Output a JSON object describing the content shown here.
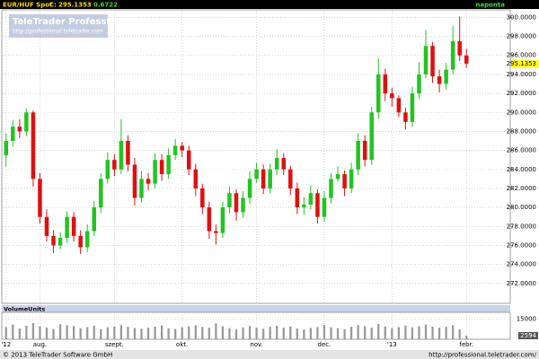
{
  "chart_data": {
    "type": "candlestick",
    "instrument": "EUR/HUF Spot",
    "close_label": "C:",
    "change": 0.6722,
    "period": "naponta",
    "watermark_title": "TeleTrader Professional",
    "watermark_url": "http://professional.teletrader.com",
    "volume_title": "VolumeUnits",
    "footer_left": "© 2013 TeleTrader Software GmbH",
    "footer_right": "http://professional.teletrader.com/",
    "up_color": "#22c422",
    "down_color": "#e01010",
    "grid": true,
    "categories": [
      "'12",
      null,
      null,
      null,
      null,
      "aug.",
      null,
      null,
      null,
      null,
      null,
      null,
      null,
      null,
      null,
      null,
      "szept.",
      null,
      null,
      null,
      null,
      null,
      null,
      null,
      null,
      null,
      "okt.",
      null,
      null,
      null,
      null,
      null,
      null,
      null,
      null,
      null,
      null,
      "nov.",
      null,
      null,
      null,
      null,
      null,
      null,
      null,
      null,
      null,
      "dec.",
      null,
      null,
      null,
      null,
      null,
      null,
      null,
      null,
      null,
      "'13",
      null,
      null,
      null,
      null,
      null,
      null,
      null,
      null,
      null,
      null,
      "febr."
    ],
    "open": [
      285.5,
      287,
      288.5,
      288,
      290,
      283,
      279,
      277,
      276,
      276.8,
      279,
      277,
      275.8,
      277.5,
      280,
      283,
      285,
      284,
      287,
      284.5,
      281,
      283,
      282.5,
      285,
      283.5,
      285.5,
      286.5,
      286,
      284,
      282,
      280,
      277.5,
      277.3,
      280,
      281.5,
      279.5,
      281,
      283,
      284,
      282,
      284,
      285.2,
      284,
      282,
      280,
      280.3,
      281.5,
      279,
      281,
      283,
      283.5,
      282,
      284,
      287,
      285,
      290,
      294,
      292,
      291.5,
      290,
      289,
      292,
      294,
      297,
      293.8,
      293,
      294.5,
      297.5,
      296
    ],
    "high": [
      287.8,
      289.2,
      289.3,
      290.4,
      290.2,
      283.6,
      279.8,
      277.6,
      277.4,
      279.6,
      279.5,
      277.6,
      278.2,
      280.7,
      283.6,
      285.8,
      285.6,
      289.3,
      287.6,
      285.2,
      283.8,
      283.6,
      285.7,
      285.6,
      286.2,
      287.2,
      286.9,
      286.5,
      284.6,
      282.5,
      280.6,
      278.2,
      280.6,
      282.2,
      281.9,
      281.7,
      283.8,
      284.7,
      284.5,
      284.6,
      286.1,
      285.7,
      284.4,
      282.6,
      281.1,
      282.3,
      281.9,
      281.7,
      283.6,
      284.3,
      283.9,
      284.7,
      287.8,
      287.6,
      290.6,
      295.7,
      294.6,
      292.6,
      291.8,
      290.5,
      292.7,
      295.3,
      298.7,
      297.4,
      294.5,
      295.2,
      299.1,
      300.1,
      296.7
    ],
    "low": [
      284.3,
      286.4,
      287.3,
      287.5,
      282.2,
      278.3,
      276.4,
      275.2,
      275.6,
      276.3,
      276.4,
      275.1,
      275.3,
      277,
      279.4,
      282.5,
      283.3,
      283.5,
      283.8,
      280.2,
      280.5,
      281.8,
      282,
      282.8,
      283,
      285,
      285.3,
      283.4,
      281.2,
      279.3,
      276.7,
      276.1,
      276.8,
      279.4,
      278.6,
      278.9,
      280.4,
      282.6,
      281.4,
      281.5,
      283.4,
      283.4,
      281.3,
      279.3,
      279.2,
      279.8,
      278.3,
      278.5,
      280.4,
      282.7,
      281.2,
      281.5,
      283.4,
      284.3,
      284.5,
      289.3,
      291.2,
      290.6,
      289.5,
      288.2,
      288.5,
      291.4,
      293.6,
      293.1,
      292.1,
      292.4,
      294,
      295.4,
      294.7
    ],
    "close": [
      287,
      288.5,
      288,
      290,
      283,
      279,
      277,
      276,
      276.8,
      279,
      277,
      275.8,
      277.5,
      280,
      283,
      285,
      284,
      287,
      284.5,
      281,
      283,
      282.5,
      285,
      283.5,
      285.5,
      286.5,
      286,
      284,
      282,
      280,
      277.5,
      277.3,
      280,
      281.5,
      279.5,
      281,
      283,
      284,
      282,
      284,
      285.2,
      284,
      282,
      280,
      280.3,
      281.5,
      279,
      281,
      283,
      283.5,
      282,
      284,
      287,
      285,
      290,
      294,
      292,
      291.5,
      290,
      289,
      292,
      294,
      297,
      293.8,
      293,
      294.5,
      297.5,
      296,
      295.1353
    ],
    "volume": [
      9000,
      11000,
      8000,
      10000,
      12000,
      9500,
      8700,
      7600,
      11200,
      10400,
      9800,
      8200,
      9000,
      10100,
      7600,
      8800,
      9300,
      10500,
      9200,
      8400,
      7900,
      8600,
      9400,
      10200,
      8100,
      7700,
      8900,
      9600,
      10300,
      9100,
      8500,
      11800,
      9700,
      8300,
      7400,
      8800,
      9900,
      8600,
      7800,
      9200,
      10100,
      8700,
      9500,
      8000,
      7200,
      8400,
      9100,
      10700,
      8900,
      8200,
      7500,
      9300,
      10600,
      9800,
      8700,
      11400,
      9600,
      8300,
      9000,
      10200,
      8800,
      9700,
      10900,
      9400,
      8600,
      9200,
      10400,
      7300,
      2594
    ],
    "ylim": [
      269.9,
      300.7
    ],
    "yticks": [
      {
        "value": 272,
        "label": "272.0000"
      },
      {
        "value": 274,
        "label": "274.0000"
      },
      {
        "value": 276,
        "label": "276.0000"
      },
      {
        "value": 278,
        "label": "278.0000"
      },
      {
        "value": 280,
        "label": "280.0000"
      },
      {
        "value": 282,
        "label": "282.0000"
      },
      {
        "value": 284,
        "label": "284.0000"
      },
      {
        "value": 286,
        "label": "286.0000"
      },
      {
        "value": 288,
        "label": "288.0000"
      },
      {
        "value": 290,
        "label": "290.0000"
      },
      {
        "value": 292,
        "label": "292.0000"
      },
      {
        "value": 294,
        "label": "294.0000"
      },
      {
        "value": 296,
        "label": "296.0000"
      },
      {
        "value": 298,
        "label": "298.0000"
      },
      {
        "value": 300,
        "label": "300.0000"
      }
    ],
    "volume_ylim": [
      0,
      20000
    ],
    "volume_yticks": [
      15000
    ]
  }
}
